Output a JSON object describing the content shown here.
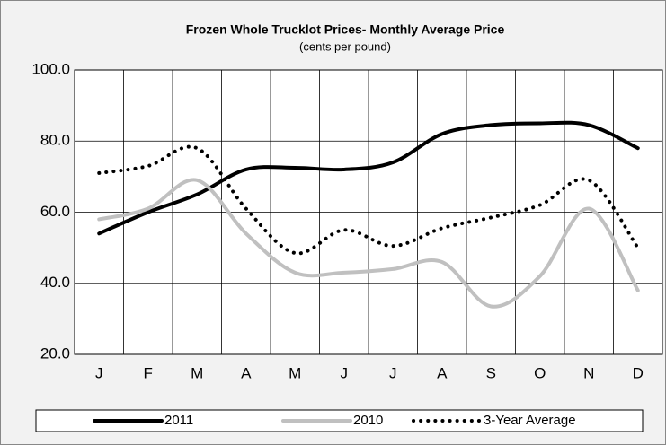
{
  "chart_data": {
    "type": "line",
    "title": "Frozen Whole Trucklot Prices- Monthly Average Price",
    "subtitle": "(cents per pound)",
    "categories": [
      "J",
      "F",
      "M",
      "A",
      "M",
      "J",
      "J",
      "A",
      "S",
      "O",
      "N",
      "D"
    ],
    "series": [
      {
        "name": "2011",
        "color": "#000000",
        "style": "solid",
        "values": [
          54,
          60,
          65,
          72,
          72.5,
          72,
          74,
          82,
          84.5,
          85,
          84.5,
          78
        ]
      },
      {
        "name": "2010",
        "color": "#c0c0c0",
        "style": "solid",
        "values": [
          58,
          61,
          69,
          54,
          43,
          43,
          44,
          46,
          33.5,
          42,
          61,
          38
        ]
      },
      {
        "name": "3-Year Average",
        "color": "#000000",
        "style": "dotted",
        "values": [
          71,
          73,
          78,
          61,
          48.5,
          55,
          50.5,
          55.5,
          58.5,
          62,
          69,
          50
        ]
      }
    ],
    "ylim": [
      20,
      100
    ],
    "yticks": [
      {
        "value": 20,
        "label": "20.0"
      },
      {
        "value": 40,
        "label": "40.0"
      },
      {
        "value": 60,
        "label": "60.0"
      },
      {
        "value": 80,
        "label": "80.0"
      },
      {
        "value": 100,
        "label": "100.0"
      }
    ],
    "grid": true,
    "legend": "bottom"
  }
}
